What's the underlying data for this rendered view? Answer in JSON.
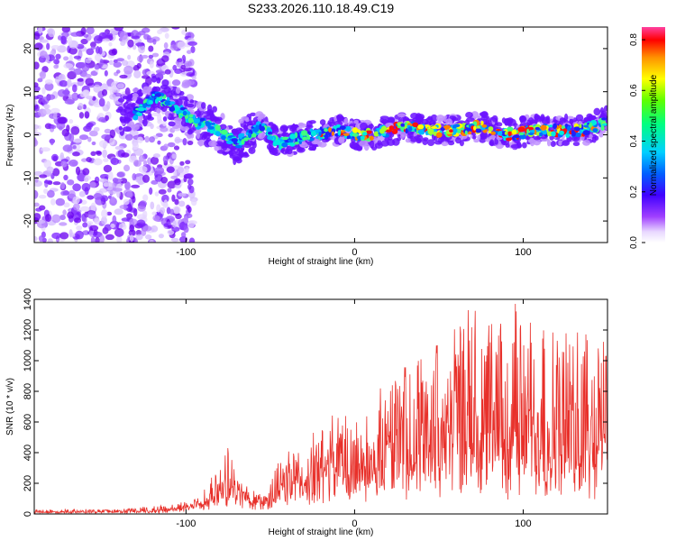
{
  "title": "S233.2026.110.18.49.C19",
  "chart_data": [
    {
      "type": "heatmap",
      "name": "spectrogram",
      "xlabel": "Height of straight line (km)",
      "ylabel": "Frequency (Hz)",
      "xlim": [
        -190,
        150
      ],
      "ylim": [
        -25,
        25
      ],
      "xticks": [
        -100,
        0,
        100
      ],
      "yticks": [
        -20,
        -10,
        0,
        10,
        20
      ],
      "ridge": [
        [
          -130,
          5
        ],
        [
          -118,
          9
        ],
        [
          -105,
          6
        ],
        [
          -95,
          3
        ],
        [
          -85,
          2
        ],
        [
          -70,
          -2
        ],
        [
          -55,
          2
        ],
        [
          -45,
          -2
        ],
        [
          -35,
          -1
        ],
        [
          -25,
          0
        ],
        [
          -10,
          1
        ],
        [
          0,
          0
        ],
        [
          10,
          0
        ],
        [
          20,
          1
        ],
        [
          30,
          2
        ],
        [
          45,
          1
        ],
        [
          60,
          1
        ],
        [
          75,
          2
        ],
        [
          90,
          0
        ],
        [
          105,
          1
        ],
        [
          120,
          1
        ],
        [
          135,
          1
        ],
        [
          150,
          3
        ]
      ],
      "noise_region": [
        -190,
        -110
      ]
    },
    {
      "type": "line",
      "name": "snr",
      "xlabel": "Height of straight line (km)",
      "ylabel": "SNR (10 * v/v)",
      "xlim": [
        -190,
        150
      ],
      "ylim": [
        0,
        1400
      ],
      "xticks": [
        -100,
        0,
        100
      ],
      "yticks": [
        0,
        200,
        400,
        600,
        800,
        1000,
        1200,
        1400
      ],
      "series": [
        {
          "name": "SNR",
          "envelope_x": [
            -190,
            -150,
            -130,
            -120,
            -110,
            -100,
            -90,
            -80,
            -75,
            -70,
            -60,
            -50,
            -40,
            -30,
            -20,
            -10,
            0,
            10,
            20,
            30,
            40,
            50,
            60,
            70,
            80,
            90,
            95,
            100,
            110,
            120,
            130,
            140,
            150
          ],
          "envelope_y": [
            30,
            30,
            40,
            55,
            60,
            90,
            150,
            300,
            460,
            280,
            170,
            200,
            480,
            420,
            580,
            680,
            620,
            700,
            860,
            1000,
            1120,
            1180,
            1300,
            1400,
            1240,
            1280,
            1400,
            1300,
            1280,
            1250,
            1180,
            1220,
            1250
          ],
          "baseline_y": [
            10,
            10,
            12,
            15,
            20,
            40,
            60,
            90,
            110,
            100,
            60,
            60,
            130,
            160,
            190,
            220,
            230,
            250,
            280,
            300,
            320,
            340,
            340,
            340,
            320,
            300,
            300,
            310,
            300,
            300,
            280,
            280,
            290
          ]
        }
      ]
    }
  ],
  "colorbar": {
    "label": "Normalized spectral amplitude",
    "ticks": [
      "0.0",
      "0.2",
      "0.4",
      "0.6",
      "0.8"
    ],
    "range": [
      0,
      0.85
    ]
  }
}
